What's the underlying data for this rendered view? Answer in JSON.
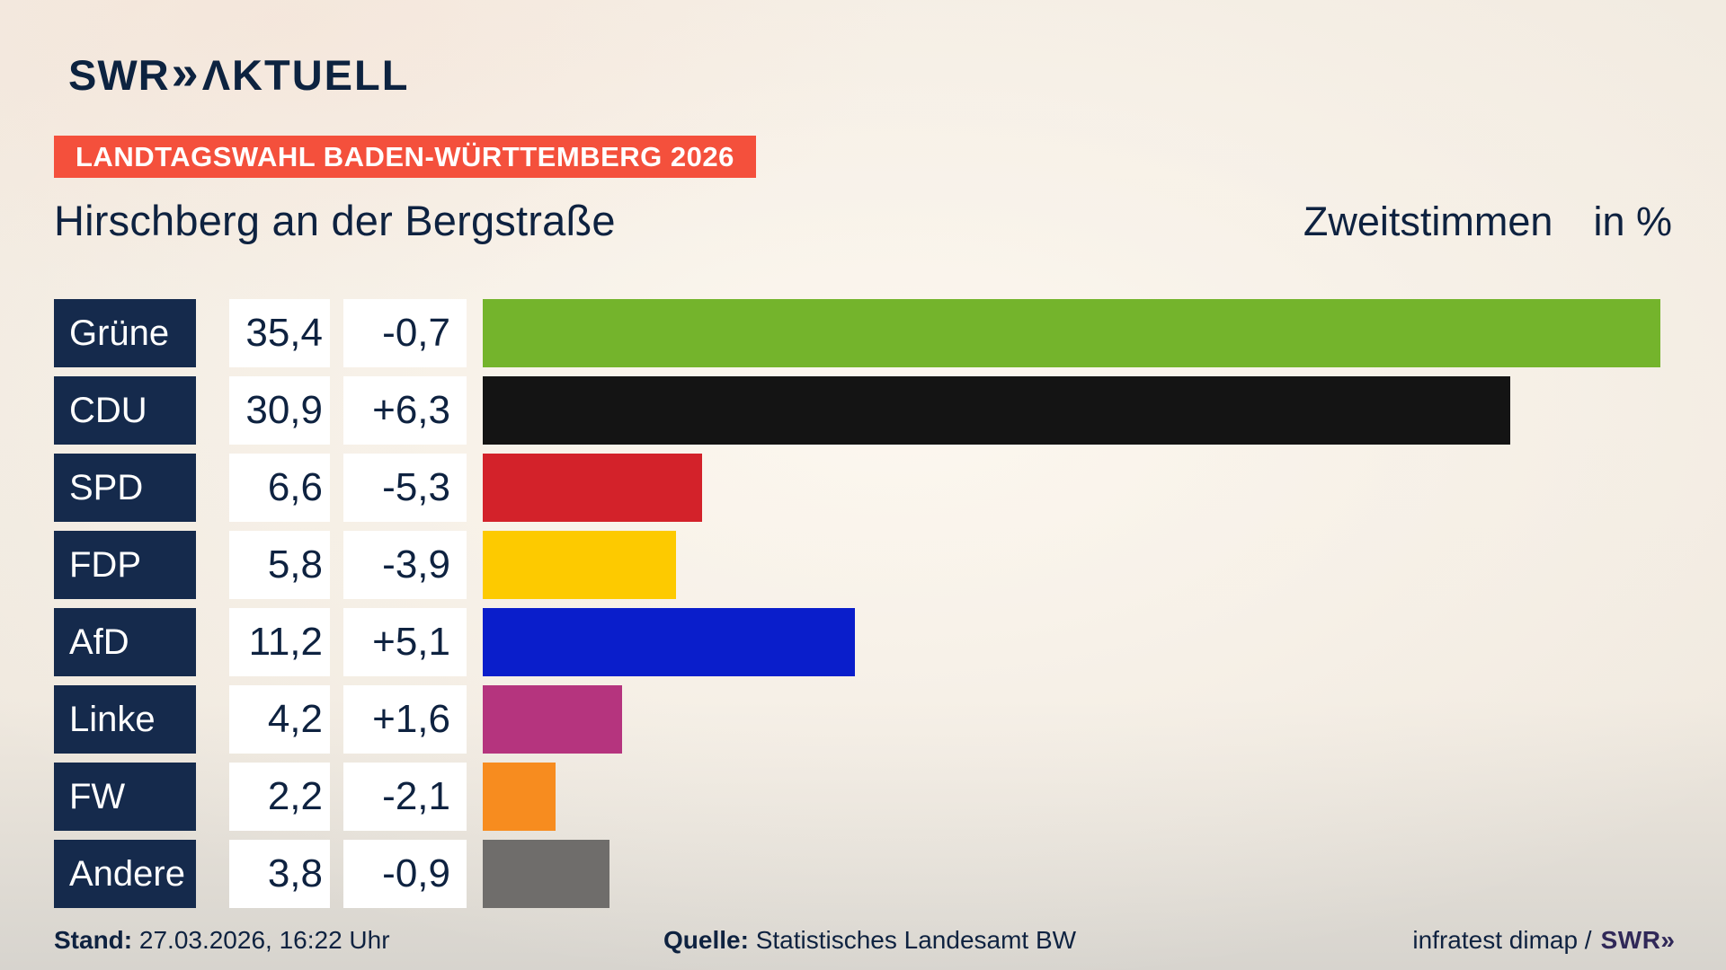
{
  "logo": {
    "swr": "SWR",
    "chevrons": "»",
    "aktuell": "ΛKTUELL"
  },
  "banner": {
    "text": "LANDTAGSWAHL BADEN-WÜRTTEMBERG 2026",
    "bg_color": "#f4503c"
  },
  "title": {
    "municipality": "Hirschberg an der Bergstraße",
    "vote_type": "Zweitstimmen",
    "unit": "in %"
  },
  "chart_data": {
    "type": "bar",
    "orientation": "horizontal",
    "title": "Hirschberg an der Bergstraße",
    "series_label": "Zweitstimmen in %",
    "xlim": [
      0,
      35.4
    ],
    "grid": false,
    "legend": false,
    "categories": [
      "Grüne",
      "CDU",
      "SPD",
      "FDP",
      "AfD",
      "Linke",
      "FW",
      "Andere"
    ],
    "values": [
      35.4,
      30.9,
      6.6,
      5.8,
      11.2,
      4.2,
      2.2,
      3.8
    ],
    "changes": [
      -0.7,
      6.3,
      -5.3,
      -3.9,
      5.1,
      1.6,
      -2.1,
      -0.9
    ],
    "rows": [
      {
        "party": "Grüne",
        "value": "35,4",
        "value_num": 35.4,
        "change": "-0,7",
        "color": "#74b42c"
      },
      {
        "party": "CDU",
        "value": "30,9",
        "value_num": 30.9,
        "change": "+6,3",
        "color": "#141414"
      },
      {
        "party": "SPD",
        "value": "6,6",
        "value_num": 6.6,
        "change": "-5,3",
        "color": "#d3222a"
      },
      {
        "party": "FDP",
        "value": "5,8",
        "value_num": 5.8,
        "change": "-3,9",
        "color": "#fdca00"
      },
      {
        "party": "AfD",
        "value": "11,2",
        "value_num": 11.2,
        "change": "+5,1",
        "color": "#0a1ecb"
      },
      {
        "party": "Linke",
        "value": "4,2",
        "value_num": 4.2,
        "change": "+1,6",
        "color": "#b5347e"
      },
      {
        "party": "FW",
        "value": "2,2",
        "value_num": 2.2,
        "change": "-2,1",
        "color": "#f78c1f"
      },
      {
        "party": "Andere",
        "value": "3,8",
        "value_num": 3.8,
        "change": "-0,9",
        "color": "#6f6d6b"
      }
    ]
  },
  "footer": {
    "stand_label": "Stand:",
    "stand_value": "27.03.2026, 16:22 Uhr",
    "source_label": "Quelle:",
    "source_value": "Statistisches Landesamt BW",
    "credit_text": "infratest dimap /",
    "credit_logo_swr": "SWR",
    "credit_logo_chevrons": "»"
  },
  "colors": {
    "background": "#f1eae0",
    "navy_text": "#0e2240",
    "label_box_navy": "#152a4c",
    "banner_red": "#f4503c",
    "box_white": "#ffffff"
  }
}
